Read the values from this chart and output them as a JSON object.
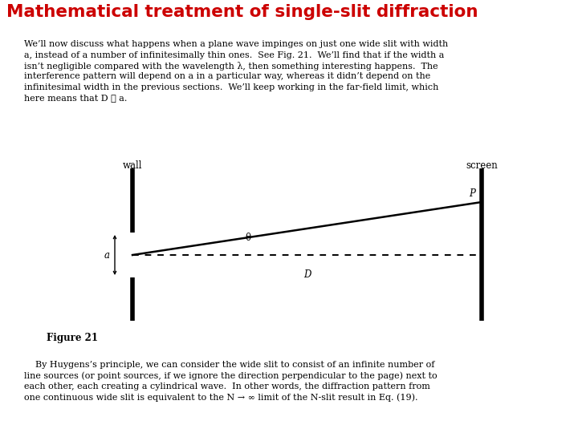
{
  "title": "Mathematical treatment of single-slit diffraction",
  "title_color": "#cc0000",
  "title_fontsize": 15.5,
  "bg_color": "#ffffff",
  "para1_lines": [
    "We’ll now discuss what happens when a plane wave impinges on just one wide slit with width",
    "a, instead of a number of infinitesimally thin ones.  See Fig. 21.  We’ll find that if the width a",
    "isn’t negligible compared with the wavelength λ, then something interesting happens.  The",
    "interference pattern will depend on a in a particular way, whereas it didn’t depend on the",
    "infinitesimal width in the previous sections.  We’ll keep working in the far-field limit, which",
    "here means that D ≫ a."
  ],
  "figure_label": "Figure 21",
  "para2_lines": [
    "    By Huygens’s principle, we can consider the wide slit to consist of an infinite number of",
    "line sources (or point sources, if we ignore the direction perpendicular to the page) next to",
    "each other, each creating a cylindrical wave.  In other words, the diffraction pattern from",
    "one continuous wide slit is equivalent to the N → ∞ limit of the N-slit result in Eq. (19)."
  ],
  "text_fontsize": 8.0,
  "text_color": "#000000",
  "wall_label": "wall",
  "screen_label": "screen",
  "P_label": "P",
  "theta_label": "θ",
  "D_label": "D",
  "a_label": "a"
}
